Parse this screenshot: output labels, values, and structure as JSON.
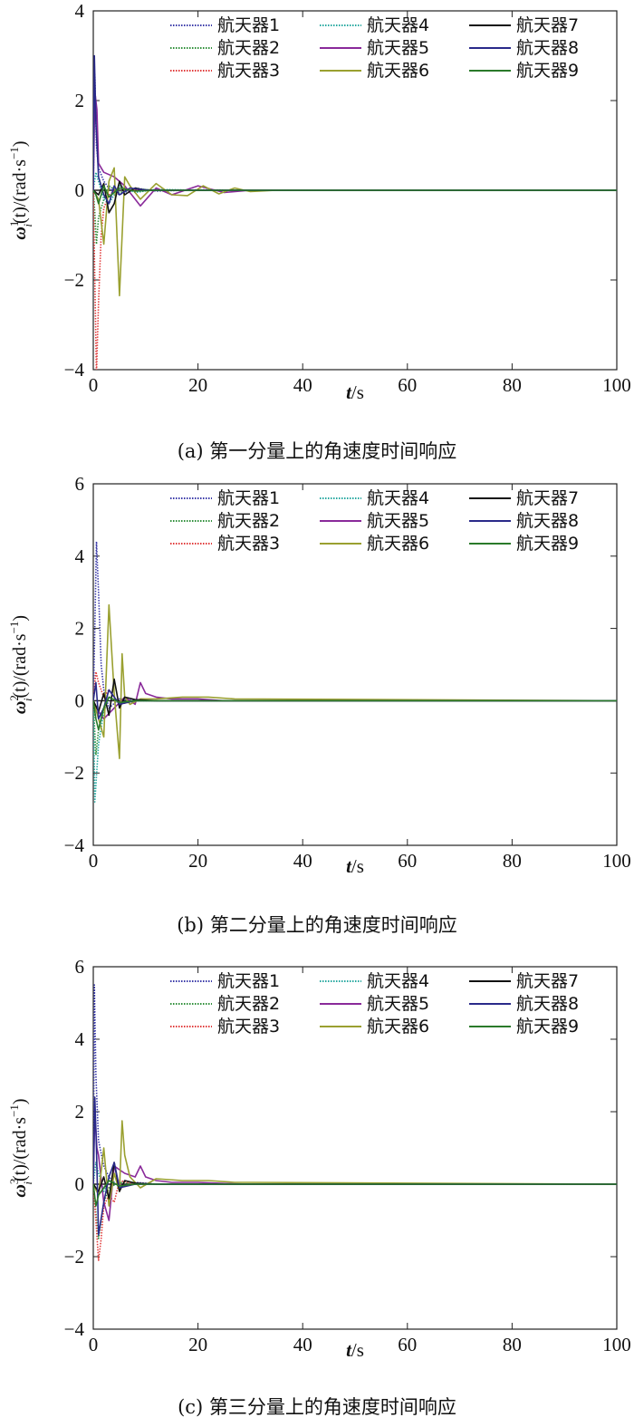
{
  "chart_data": [
    {
      "type": "line",
      "caption": "(a) 第一分量上的角速度时间响应",
      "xlabel": "t/s",
      "ylabel": "ωi1(t)/(rad·s−1)",
      "ylabel_parts": {
        "base": "ω",
        "sup": "1",
        "sub": "i",
        "mid": "(t)/(rad·s",
        "unitsup": "−1",
        "end": ")"
      },
      "xlim": [
        0,
        100
      ],
      "ylim": [
        -4,
        4
      ],
      "xticks": [
        0,
        20,
        40,
        60,
        80,
        100
      ],
      "yticks": [
        -4,
        -2,
        0,
        2,
        4
      ],
      "legend_position": "top-right",
      "series": [
        {
          "name": "航天器1",
          "color": "#3a3aa8",
          "style": "dotted",
          "x": [
            0,
            0.3,
            0.6,
            1,
            2,
            3,
            5,
            8,
            12,
            20,
            30,
            100
          ],
          "y": [
            0,
            2.6,
            1.0,
            0.5,
            0.2,
            0.05,
            -0.1,
            0.05,
            -0.02,
            0.01,
            0,
            0
          ]
        },
        {
          "name": "航天器2",
          "color": "#2f8f3a",
          "style": "dotted",
          "x": [
            0,
            0.3,
            0.6,
            1,
            2,
            3,
            5,
            8,
            12,
            20,
            100
          ],
          "y": [
            0,
            -0.5,
            -1.2,
            -0.6,
            -0.2,
            0.1,
            -0.05,
            0.03,
            0,
            0,
            0
          ]
        },
        {
          "name": "航天器3",
          "color": "#e03a3a",
          "style": "dotted",
          "x": [
            0,
            0.3,
            0.6,
            1,
            1.5,
            2,
            3,
            5,
            8,
            12,
            100
          ],
          "y": [
            0,
            -2.0,
            -4.1,
            -2.5,
            -1.0,
            -0.4,
            -0.1,
            0.05,
            0,
            0,
            0
          ]
        },
        {
          "name": "航天器4",
          "color": "#27a8a0",
          "style": "dotted",
          "x": [
            0,
            0.5,
            1,
            2,
            3,
            5,
            8,
            12,
            20,
            100
          ],
          "y": [
            0,
            0.4,
            0.2,
            -0.2,
            -0.3,
            0.1,
            -0.05,
            0.02,
            0,
            0
          ]
        },
        {
          "name": "航天器5",
          "color": "#8a2a9a",
          "style": "solid",
          "x": [
            0,
            0.3,
            0.7,
            1,
            2,
            4,
            6,
            9,
            12,
            15,
            20,
            25,
            30,
            100
          ],
          "y": [
            0,
            2.2,
            1.8,
            0.6,
            0.4,
            0.3,
            0.1,
            -0.35,
            0.05,
            -0.1,
            0.1,
            -0.05,
            0,
            0
          ]
        },
        {
          "name": "航天器6",
          "color": "#9aa030",
          "style": "solid",
          "x": [
            0,
            1,
            2,
            3,
            4,
            5,
            6,
            7,
            9,
            12,
            15,
            18,
            21,
            24,
            27,
            30,
            35,
            100
          ],
          "y": [
            0,
            -0.2,
            -1.2,
            0.2,
            0.5,
            -2.35,
            0.3,
            0.1,
            -0.2,
            0.15,
            -0.1,
            -0.12,
            0.1,
            -0.08,
            0.05,
            -0.03,
            0,
            0
          ]
        },
        {
          "name": "航天器7",
          "color": "#111111",
          "style": "solid",
          "x": [
            0,
            1,
            2,
            3,
            4,
            5,
            6,
            8,
            10,
            15,
            20,
            100
          ],
          "y": [
            0,
            -0.1,
            0.15,
            -0.5,
            -0.3,
            0.2,
            -0.1,
            0.05,
            0,
            0,
            0,
            0
          ]
        },
        {
          "name": "航天器8",
          "color": "#2a2a8a",
          "style": "solid",
          "x": [
            0,
            0.2,
            0.5,
            1,
            2,
            3,
            4,
            5,
            7,
            10,
            20,
            100
          ],
          "y": [
            0,
            3.0,
            1.5,
            0.3,
            -0.1,
            -0.3,
            0.1,
            -0.1,
            0.05,
            0,
            0,
            0
          ]
        },
        {
          "name": "航天器9",
          "color": "#2a7a2a",
          "style": "solid",
          "x": [
            0,
            0.5,
            1,
            2,
            3,
            5,
            8,
            12,
            20,
            100
          ],
          "y": [
            0,
            -0.1,
            -0.3,
            0.1,
            -0.15,
            0.05,
            -0.02,
            0,
            0,
            0
          ]
        }
      ]
    },
    {
      "type": "line",
      "caption": "(b) 第二分量上的角速度时间响应",
      "xlabel": "t/s",
      "ylabel": "ωi2(t)/(rad·s−1)",
      "ylabel_parts": {
        "base": "ω",
        "sup": "2",
        "sub": "i",
        "mid": "(t)/(rad·s",
        "unitsup": "−1",
        "end": ")"
      },
      "xlim": [
        0,
        100
      ],
      "ylim": [
        -4,
        6
      ],
      "xticks": [
        0,
        20,
        40,
        60,
        80,
        100
      ],
      "yticks": [
        -4,
        -2,
        0,
        2,
        4,
        6
      ],
      "legend_position": "top-right",
      "series": [
        {
          "name": "航天器1",
          "color": "#3a3aa8",
          "style": "dotted",
          "x": [
            0,
            0.3,
            0.6,
            1,
            1.5,
            2,
            3,
            5,
            8,
            12,
            100
          ],
          "y": [
            0,
            2.0,
            4.4,
            3.0,
            1.0,
            0.3,
            -0.2,
            0.05,
            0,
            0,
            0
          ]
        },
        {
          "name": "航天器2",
          "color": "#2f8f3a",
          "style": "dotted",
          "x": [
            0,
            0.5,
            1,
            2,
            3,
            5,
            8,
            12,
            100
          ],
          "y": [
            0,
            -1.5,
            -0.8,
            -0.2,
            0.1,
            -0.05,
            0,
            0,
            0
          ]
        },
        {
          "name": "航天器3",
          "color": "#e03a3a",
          "style": "dotted",
          "x": [
            0,
            0.5,
            1,
            2,
            3,
            5,
            8,
            100
          ],
          "y": [
            0,
            0.8,
            0.5,
            0.1,
            0.3,
            -0.1,
            0,
            0
          ]
        },
        {
          "name": "航天器4",
          "color": "#27a8a0",
          "style": "dotted",
          "x": [
            0,
            0.3,
            1,
            2,
            3,
            5,
            8,
            12,
            100
          ],
          "y": [
            0,
            -2.8,
            -1.2,
            -0.3,
            0.1,
            -0.05,
            0,
            0,
            0
          ]
        },
        {
          "name": "航天器5",
          "color": "#8a2a9a",
          "style": "solid",
          "x": [
            0,
            1,
            2,
            4,
            6,
            8,
            9,
            10,
            12,
            15,
            20,
            25,
            100
          ],
          "y": [
            0,
            -0.3,
            -0.5,
            -0.2,
            0.1,
            -0.1,
            0.5,
            0.2,
            0.1,
            0.05,
            0.05,
            0,
            0
          ]
        },
        {
          "name": "航天器6",
          "color": "#9aa030",
          "style": "solid",
          "x": [
            0,
            1,
            2,
            3,
            4,
            5,
            5.5,
            6,
            7,
            9,
            12,
            17,
            22,
            27,
            100
          ],
          "y": [
            0,
            -0.5,
            -1.0,
            2.65,
            0.2,
            -1.6,
            1.3,
            0.1,
            -0.1,
            0.05,
            0.05,
            0.1,
            0.1,
            0.05,
            0
          ]
        },
        {
          "name": "航天器7",
          "color": "#111111",
          "style": "solid",
          "x": [
            0,
            1,
            2,
            3,
            4,
            5,
            6,
            8,
            12,
            100
          ],
          "y": [
            0,
            -0.3,
            0.2,
            -0.4,
            0.6,
            -0.2,
            0.1,
            0.03,
            0,
            0
          ]
        },
        {
          "name": "航天器8",
          "color": "#2a2a8a",
          "style": "solid",
          "x": [
            0,
            0.5,
            1,
            2,
            3,
            5,
            8,
            100
          ],
          "y": [
            0,
            0.5,
            -0.5,
            -0.2,
            0.3,
            -0.1,
            0,
            0
          ]
        },
        {
          "name": "航天器9",
          "color": "#2a7a2a",
          "style": "solid",
          "x": [
            0,
            0.5,
            1,
            2,
            3,
            5,
            8,
            100
          ],
          "y": [
            0,
            -0.5,
            -0.8,
            -0.2,
            0.1,
            -0.05,
            0,
            0
          ]
        }
      ]
    },
    {
      "type": "line",
      "caption": "(c) 第三分量上的角速度时间响应",
      "xlabel": "t/s",
      "ylabel": "ωi3(t)/(rad·s−1)",
      "ylabel_parts": {
        "base": "ω",
        "sup": "3",
        "sub": "i",
        "mid": "(t)/(rad·s",
        "unitsup": "−1",
        "end": ")"
      },
      "xlim": [
        0,
        100
      ],
      "ylim": [
        -4,
        6
      ],
      "xticks": [
        0,
        20,
        40,
        60,
        80,
        100
      ],
      "yticks": [
        -4,
        -2,
        0,
        2,
        4,
        6
      ],
      "legend_position": "top-right",
      "series": [
        {
          "name": "航天器1",
          "color": "#3a3aa8",
          "style": "dotted",
          "x": [
            0,
            0.2,
            0.5,
            1,
            2,
            3,
            5,
            8,
            12,
            100
          ],
          "y": [
            0,
            5.5,
            3.0,
            1.2,
            0.5,
            0.2,
            -0.1,
            0.05,
            0,
            0
          ]
        },
        {
          "name": "航天器2",
          "color": "#2f8f3a",
          "style": "dotted",
          "x": [
            0,
            0.5,
            1,
            2,
            3,
            5,
            8,
            100
          ],
          "y": [
            0,
            -0.8,
            -1.5,
            -0.5,
            -0.1,
            0.05,
            0,
            0
          ]
        },
        {
          "name": "航天器3",
          "color": "#e03a3a",
          "style": "dotted",
          "x": [
            0,
            0.5,
            1,
            1.5,
            2,
            3,
            4,
            5,
            8,
            100
          ],
          "y": [
            0,
            -1.0,
            -2.1,
            -1.5,
            -0.6,
            -0.3,
            -0.5,
            0.1,
            0,
            0
          ]
        },
        {
          "name": "航天器4",
          "color": "#27a8a0",
          "style": "dotted",
          "x": [
            0,
            0.5,
            1,
            2,
            3,
            5,
            8,
            100
          ],
          "y": [
            0,
            0.6,
            0.3,
            -0.2,
            0.1,
            -0.05,
            0,
            0
          ]
        },
        {
          "name": "航天器5",
          "color": "#8a2a9a",
          "style": "solid",
          "x": [
            0,
            0.3,
            0.7,
            1,
            2,
            3,
            4,
            6,
            8,
            9,
            10,
            12,
            15,
            20,
            25,
            30,
            100
          ],
          "y": [
            0,
            2.0,
            1.0,
            0.8,
            -0.5,
            -1.0,
            0.5,
            0.3,
            0.2,
            0.5,
            0.2,
            0.1,
            0.05,
            0.05,
            0.02,
            0,
            0
          ]
        },
        {
          "name": "航天器6",
          "color": "#9aa030",
          "style": "solid",
          "x": [
            0,
            1,
            2,
            3,
            4,
            5,
            5.5,
            6,
            7,
            9,
            12,
            17,
            22,
            27,
            30,
            100
          ],
          "y": [
            0,
            -0.3,
            1.0,
            -0.6,
            0.3,
            -0.2,
            1.75,
            0.8,
            0.2,
            -0.1,
            0.15,
            0.1,
            0.1,
            0.05,
            0.05,
            0
          ]
        },
        {
          "name": "航天器7",
          "color": "#111111",
          "style": "solid",
          "x": [
            0,
            1,
            2,
            3,
            4,
            5,
            6,
            8,
            12,
            100
          ],
          "y": [
            0,
            -0.2,
            0.2,
            -0.4,
            0.6,
            -0.2,
            0.1,
            0.03,
            0,
            0
          ]
        },
        {
          "name": "航天器8",
          "color": "#2a2a8a",
          "style": "solid",
          "x": [
            0,
            0.3,
            0.6,
            1,
            2,
            3,
            4,
            5,
            8,
            100
          ],
          "y": [
            0,
            2.4,
            1.0,
            -1.4,
            -0.5,
            0.2,
            0.6,
            -0.1,
            0,
            0
          ]
        },
        {
          "name": "航天器9",
          "color": "#2a7a2a",
          "style": "solid",
          "x": [
            0,
            0.5,
            1,
            2,
            3,
            5,
            8,
            100
          ],
          "y": [
            0,
            -0.6,
            -0.3,
            -0.1,
            0.1,
            -0.05,
            0,
            0
          ]
        }
      ]
    }
  ]
}
